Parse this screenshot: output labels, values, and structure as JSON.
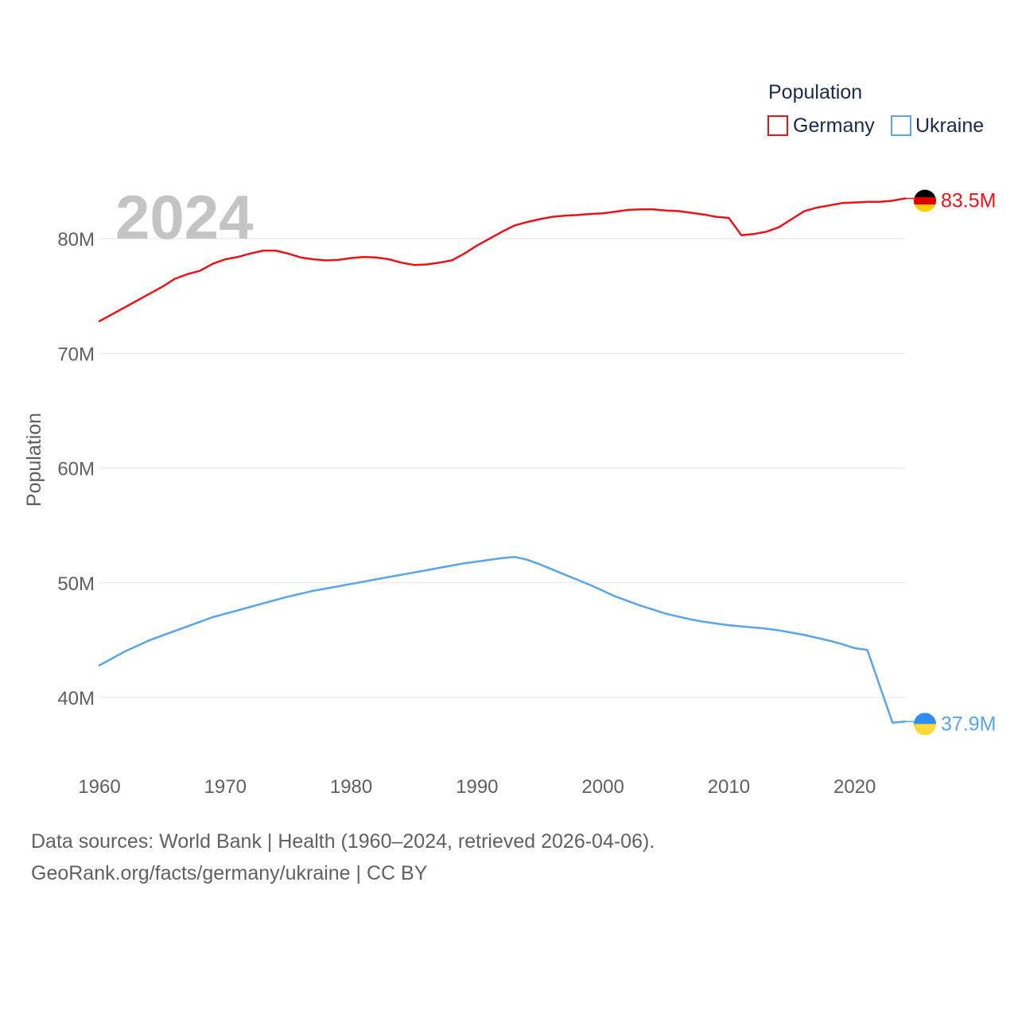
{
  "chart_data": {
    "type": "line",
    "title": "Population",
    "ylabel": "Population",
    "xlabel": "",
    "watermark_year": "2024",
    "xlim": [
      1960,
      2024
    ],
    "ylim": [
      35000000,
      88000000
    ],
    "x_ticks": [
      1960,
      1970,
      1980,
      1990,
      2000,
      2010,
      2020
    ],
    "x_tick_labels": [
      "1960",
      "1970",
      "1980",
      "1990",
      "2000",
      "2010",
      "2020"
    ],
    "y_ticks": [
      40000000,
      50000000,
      60000000,
      70000000,
      80000000
    ],
    "y_tick_labels": [
      "40M",
      "50M",
      "60M",
      "70M",
      "80M"
    ],
    "grid": true,
    "legend_position": "top-right",
    "years": [
      1960,
      1961,
      1962,
      1963,
      1964,
      1965,
      1966,
      1967,
      1968,
      1969,
      1970,
      1971,
      1972,
      1973,
      1974,
      1975,
      1976,
      1977,
      1978,
      1979,
      1980,
      1981,
      1982,
      1983,
      1984,
      1985,
      1986,
      1987,
      1988,
      1989,
      1990,
      1991,
      1992,
      1993,
      1994,
      1995,
      1996,
      1997,
      1998,
      1999,
      2000,
      2001,
      2002,
      2003,
      2004,
      2005,
      2006,
      2007,
      2008,
      2009,
      2010,
      2011,
      2012,
      2013,
      2014,
      2015,
      2016,
      2017,
      2018,
      2019,
      2020,
      2021,
      2022,
      2023,
      2024
    ],
    "series": [
      {
        "name": "Germany",
        "color": "#e8141a",
        "end_label": "83.5M",
        "flag": "germany-flag",
        "values": [
          72800000,
          73400000,
          74000000,
          74600000,
          75200000,
          75800000,
          76500000,
          76900000,
          77200000,
          77800000,
          78200000,
          78400000,
          78700000,
          78950000,
          78950000,
          78700000,
          78350000,
          78200000,
          78100000,
          78150000,
          78300000,
          78400000,
          78350000,
          78200000,
          77900000,
          77700000,
          77750000,
          77900000,
          78100000,
          78700000,
          79400000,
          80000000,
          80600000,
          81150000,
          81450000,
          81700000,
          81900000,
          82000000,
          82050000,
          82150000,
          82200000,
          82350000,
          82500000,
          82550000,
          82550000,
          82450000,
          82400000,
          82250000,
          82100000,
          81900000,
          81800000,
          80300000,
          80400000,
          80600000,
          81000000,
          81700000,
          82400000,
          82700000,
          82900000,
          83100000,
          83150000,
          83200000,
          83200000,
          83300000,
          83500000
        ]
      },
      {
        "name": "Ukraine",
        "color": "#5aa5e8",
        "end_label": "37.9M",
        "flag": "ukraine-flag",
        "values": [
          42800000,
          43400000,
          44000000,
          44500000,
          45000000,
          45400000,
          45800000,
          46200000,
          46600000,
          47000000,
          47300000,
          47600000,
          47900000,
          48200000,
          48500000,
          48800000,
          49050000,
          49300000,
          49500000,
          49700000,
          49900000,
          50100000,
          50300000,
          50500000,
          50700000,
          50900000,
          51100000,
          51300000,
          51500000,
          51700000,
          51850000,
          52000000,
          52150000,
          52250000,
          52000000,
          51600000,
          51150000,
          50700000,
          50250000,
          49800000,
          49300000,
          48800000,
          48400000,
          48000000,
          47650000,
          47300000,
          47050000,
          46800000,
          46600000,
          46450000,
          46300000,
          46200000,
          46100000,
          46000000,
          45850000,
          45650000,
          45450000,
          45200000,
          44950000,
          44650000,
          44300000,
          44150000,
          41000000,
          37800000,
          37900000
        ]
      }
    ]
  },
  "footer": {
    "line1": "Data sources: World Bank | Health (1960–2024, retrieved 2026-04-06).",
    "line2": "GeoRank.org/facts/germany/ukraine | CC BY"
  }
}
